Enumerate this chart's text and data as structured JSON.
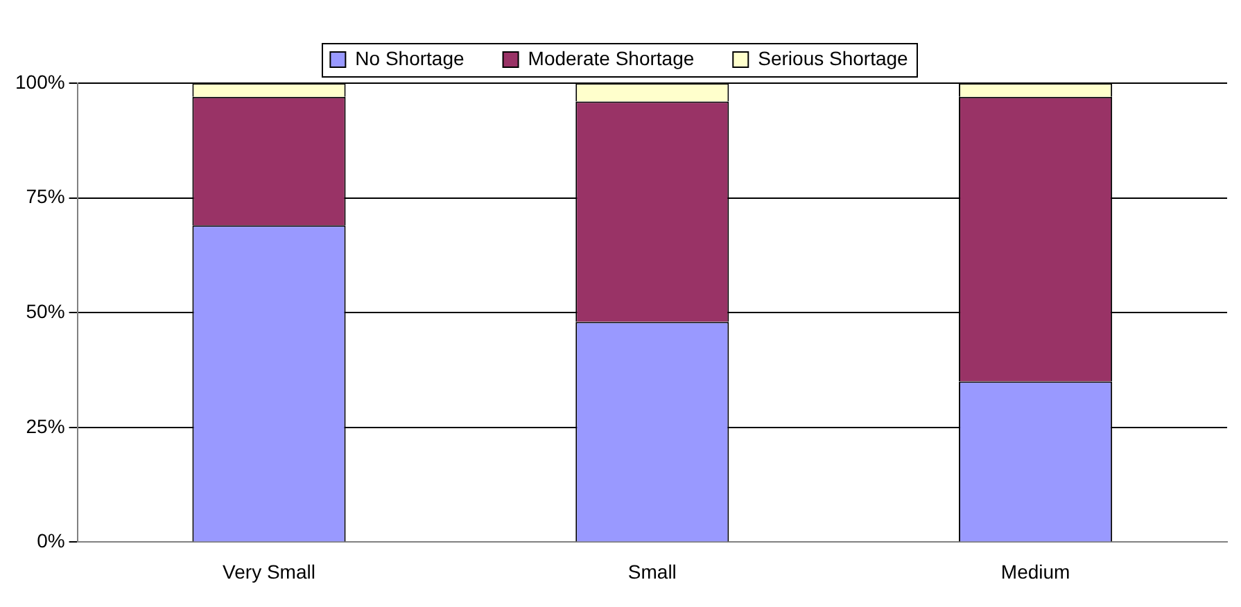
{
  "chart_data": {
    "type": "bar",
    "stacked": true,
    "categories": [
      "Very Small",
      "Small",
      "Medium"
    ],
    "series": [
      {
        "name": "No Shortage",
        "color": "#9999ff",
        "values": [
          69,
          48,
          35
        ]
      },
      {
        "name": "Moderate Shortage",
        "color": "#993366",
        "values": [
          28,
          48,
          62
        ]
      },
      {
        "name": "Serious Shortage",
        "color": "#ffffcc",
        "values": [
          3,
          4,
          3
        ]
      }
    ],
    "ylim": [
      0,
      100
    ],
    "yticks": [
      {
        "value": 0,
        "label": "0%"
      },
      {
        "value": 25,
        "label": "25%"
      },
      {
        "value": 50,
        "label": "50%"
      },
      {
        "value": 75,
        "label": "75%"
      },
      {
        "value": 100,
        "label": "100%"
      }
    ],
    "grid": "y",
    "legend": "top"
  }
}
